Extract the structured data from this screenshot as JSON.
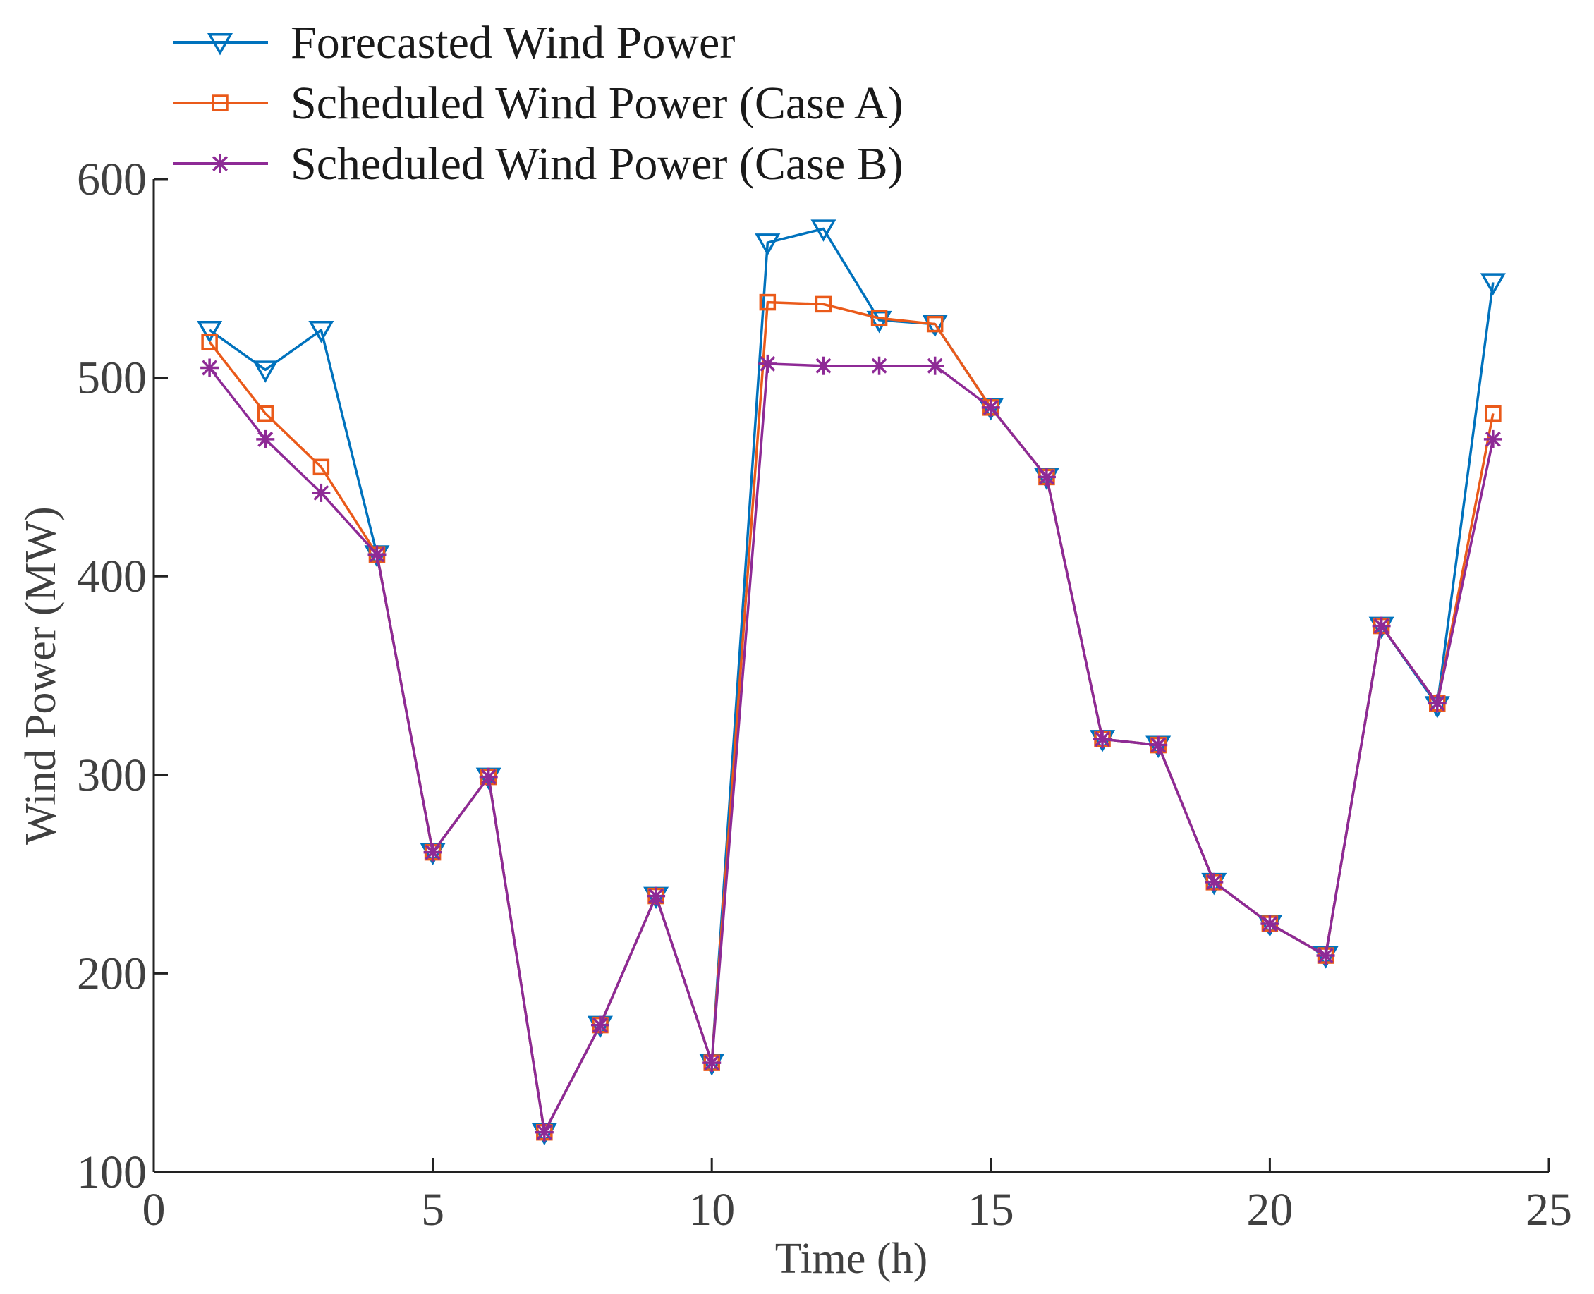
{
  "chart_data": {
    "type": "line",
    "title": "",
    "xlabel": "Time (h)",
    "ylabel": "Wind Power (MW)",
    "xlim": [
      0,
      25
    ],
    "ylim": [
      100,
      600
    ],
    "xticks": [
      0,
      5,
      10,
      15,
      20,
      25
    ],
    "yticks": [
      100,
      200,
      300,
      400,
      500,
      600
    ],
    "grid": false,
    "legend_position": "top-left",
    "x": [
      1,
      2,
      3,
      4,
      5,
      6,
      7,
      8,
      9,
      10,
      11,
      12,
      13,
      14,
      15,
      16,
      17,
      18,
      19,
      20,
      21,
      22,
      23,
      24
    ],
    "series": [
      {
        "name": "Forecasted Wind Power",
        "color": "#0072BD",
        "marker": "triangle-down",
        "values": [
          524,
          504,
          524,
          411,
          261,
          299,
          120,
          174,
          239,
          155,
          568,
          575,
          529,
          527,
          485,
          450,
          318,
          315,
          246,
          225,
          209,
          375,
          335,
          548
        ]
      },
      {
        "name": "Scheduled Wind Power (Case A)",
        "color": "#EA5A1A",
        "marker": "square",
        "values": [
          518,
          482,
          455,
          411,
          261,
          299,
          120,
          174,
          239,
          155,
          538,
          537,
          530,
          527,
          485,
          450,
          318,
          315,
          246,
          225,
          209,
          375,
          336,
          482
        ]
      },
      {
        "name": "Scheduled Wind Power (Case B)",
        "color": "#8E2A96",
        "marker": "asterisk",
        "values": [
          505,
          469,
          442,
          411,
          261,
          299,
          120,
          174,
          239,
          155,
          507,
          506,
          506,
          506,
          485,
          450,
          318,
          315,
          246,
          225,
          209,
          375,
          336,
          469
        ]
      }
    ]
  }
}
